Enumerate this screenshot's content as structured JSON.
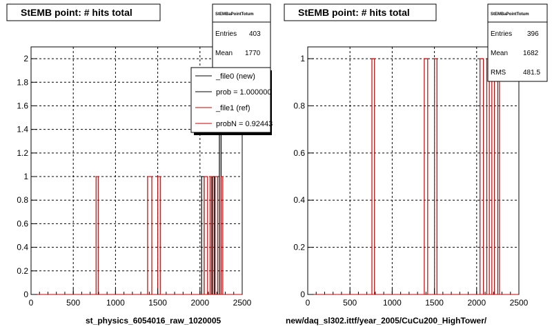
{
  "colors": {
    "new": "#000000",
    "ref": "#cc0000",
    "grid": "#000000",
    "background": "#ffffff"
  },
  "left": {
    "title": "StEMB point: # hits total",
    "xlabel": "st_physics_6054016_raw_1020005",
    "stats": {
      "name": "StEMBaPointTotum",
      "entries_label": "Entries",
      "entries": "403",
      "mean_label": "Mean",
      "mean": "1770"
    },
    "legend": [
      "_file0 (new)",
      "prob = 1.000000",
      "_file1 (ref)",
      "probN = 0.92443"
    ]
  },
  "right": {
    "title": "StEMB point: # hits total",
    "xlabel": "new/daq_sl302.ittf/year_2005/CuCu200_HighTower/",
    "stats": {
      "name": "StEMBaPointTotum",
      "entries_label": "Entries",
      "entries": "396",
      "mean_label": "Mean",
      "mean": "1682",
      "rms_label": "RMS",
      "rms": "481.5"
    }
  },
  "chart_data": [
    {
      "type": "histogram",
      "title": "StEMB point: # hits total",
      "xlabel": "st_physics_6054016_raw_1020005",
      "ylabel": "",
      "xlim": [
        0,
        2500
      ],
      "ylim": [
        0,
        2.1
      ],
      "xticks": [
        "0",
        "500",
        "1000",
        "1500",
        "2000",
        "2500"
      ],
      "yticks": [
        "0",
        "0.2",
        "0.4",
        "0.6",
        "0.8",
        "1",
        "1.2",
        "1.4",
        "1.6",
        "1.8",
        "2"
      ],
      "grid": true,
      "legend_position": "top-right",
      "series": [
        {
          "name": "_file0 (new)",
          "color": "#000000",
          "bins": [
            [
              2020,
              2050,
              1
            ],
            [
              2140,
              2170,
              1
            ],
            [
              2230,
              2250,
              2
            ]
          ]
        },
        {
          "name": "_file1 (ref)",
          "color": "#cc0000",
          "bins": [
            [
              770,
              795,
              1
            ],
            [
              1380,
              1430,
              1
            ],
            [
              1500,
              1530,
              1
            ],
            [
              2050,
              2090,
              1
            ],
            [
              2120,
              2150,
              1
            ],
            [
              2180,
              2210,
              1
            ],
            [
              2250,
              2270,
              1
            ]
          ]
        }
      ]
    },
    {
      "type": "histogram",
      "title": "StEMB point: # hits total",
      "xlabel": "new/daq_sl302.ittf/year_2005/CuCu200_HighTower/",
      "ylabel": "",
      "xlim": [
        0,
        2500
      ],
      "ylim": [
        0,
        1.05
      ],
      "xticks": [
        "0",
        "500",
        "1000",
        "1500",
        "2000",
        "2500"
      ],
      "yticks": [
        "0",
        "0.2",
        "0.4",
        "0.6",
        "0.8",
        "1"
      ],
      "grid": true,
      "series": [
        {
          "name": "",
          "color": "#cc0000",
          "bins": [
            [
              760,
              790,
              1
            ],
            [
              1380,
              1420,
              1
            ],
            [
              1500,
              1530,
              1
            ],
            [
              2040,
              2080,
              1
            ],
            [
              2120,
              2150,
              1
            ],
            [
              2180,
              2210,
              1
            ],
            [
              2250,
              2270,
              1
            ]
          ]
        }
      ]
    }
  ]
}
